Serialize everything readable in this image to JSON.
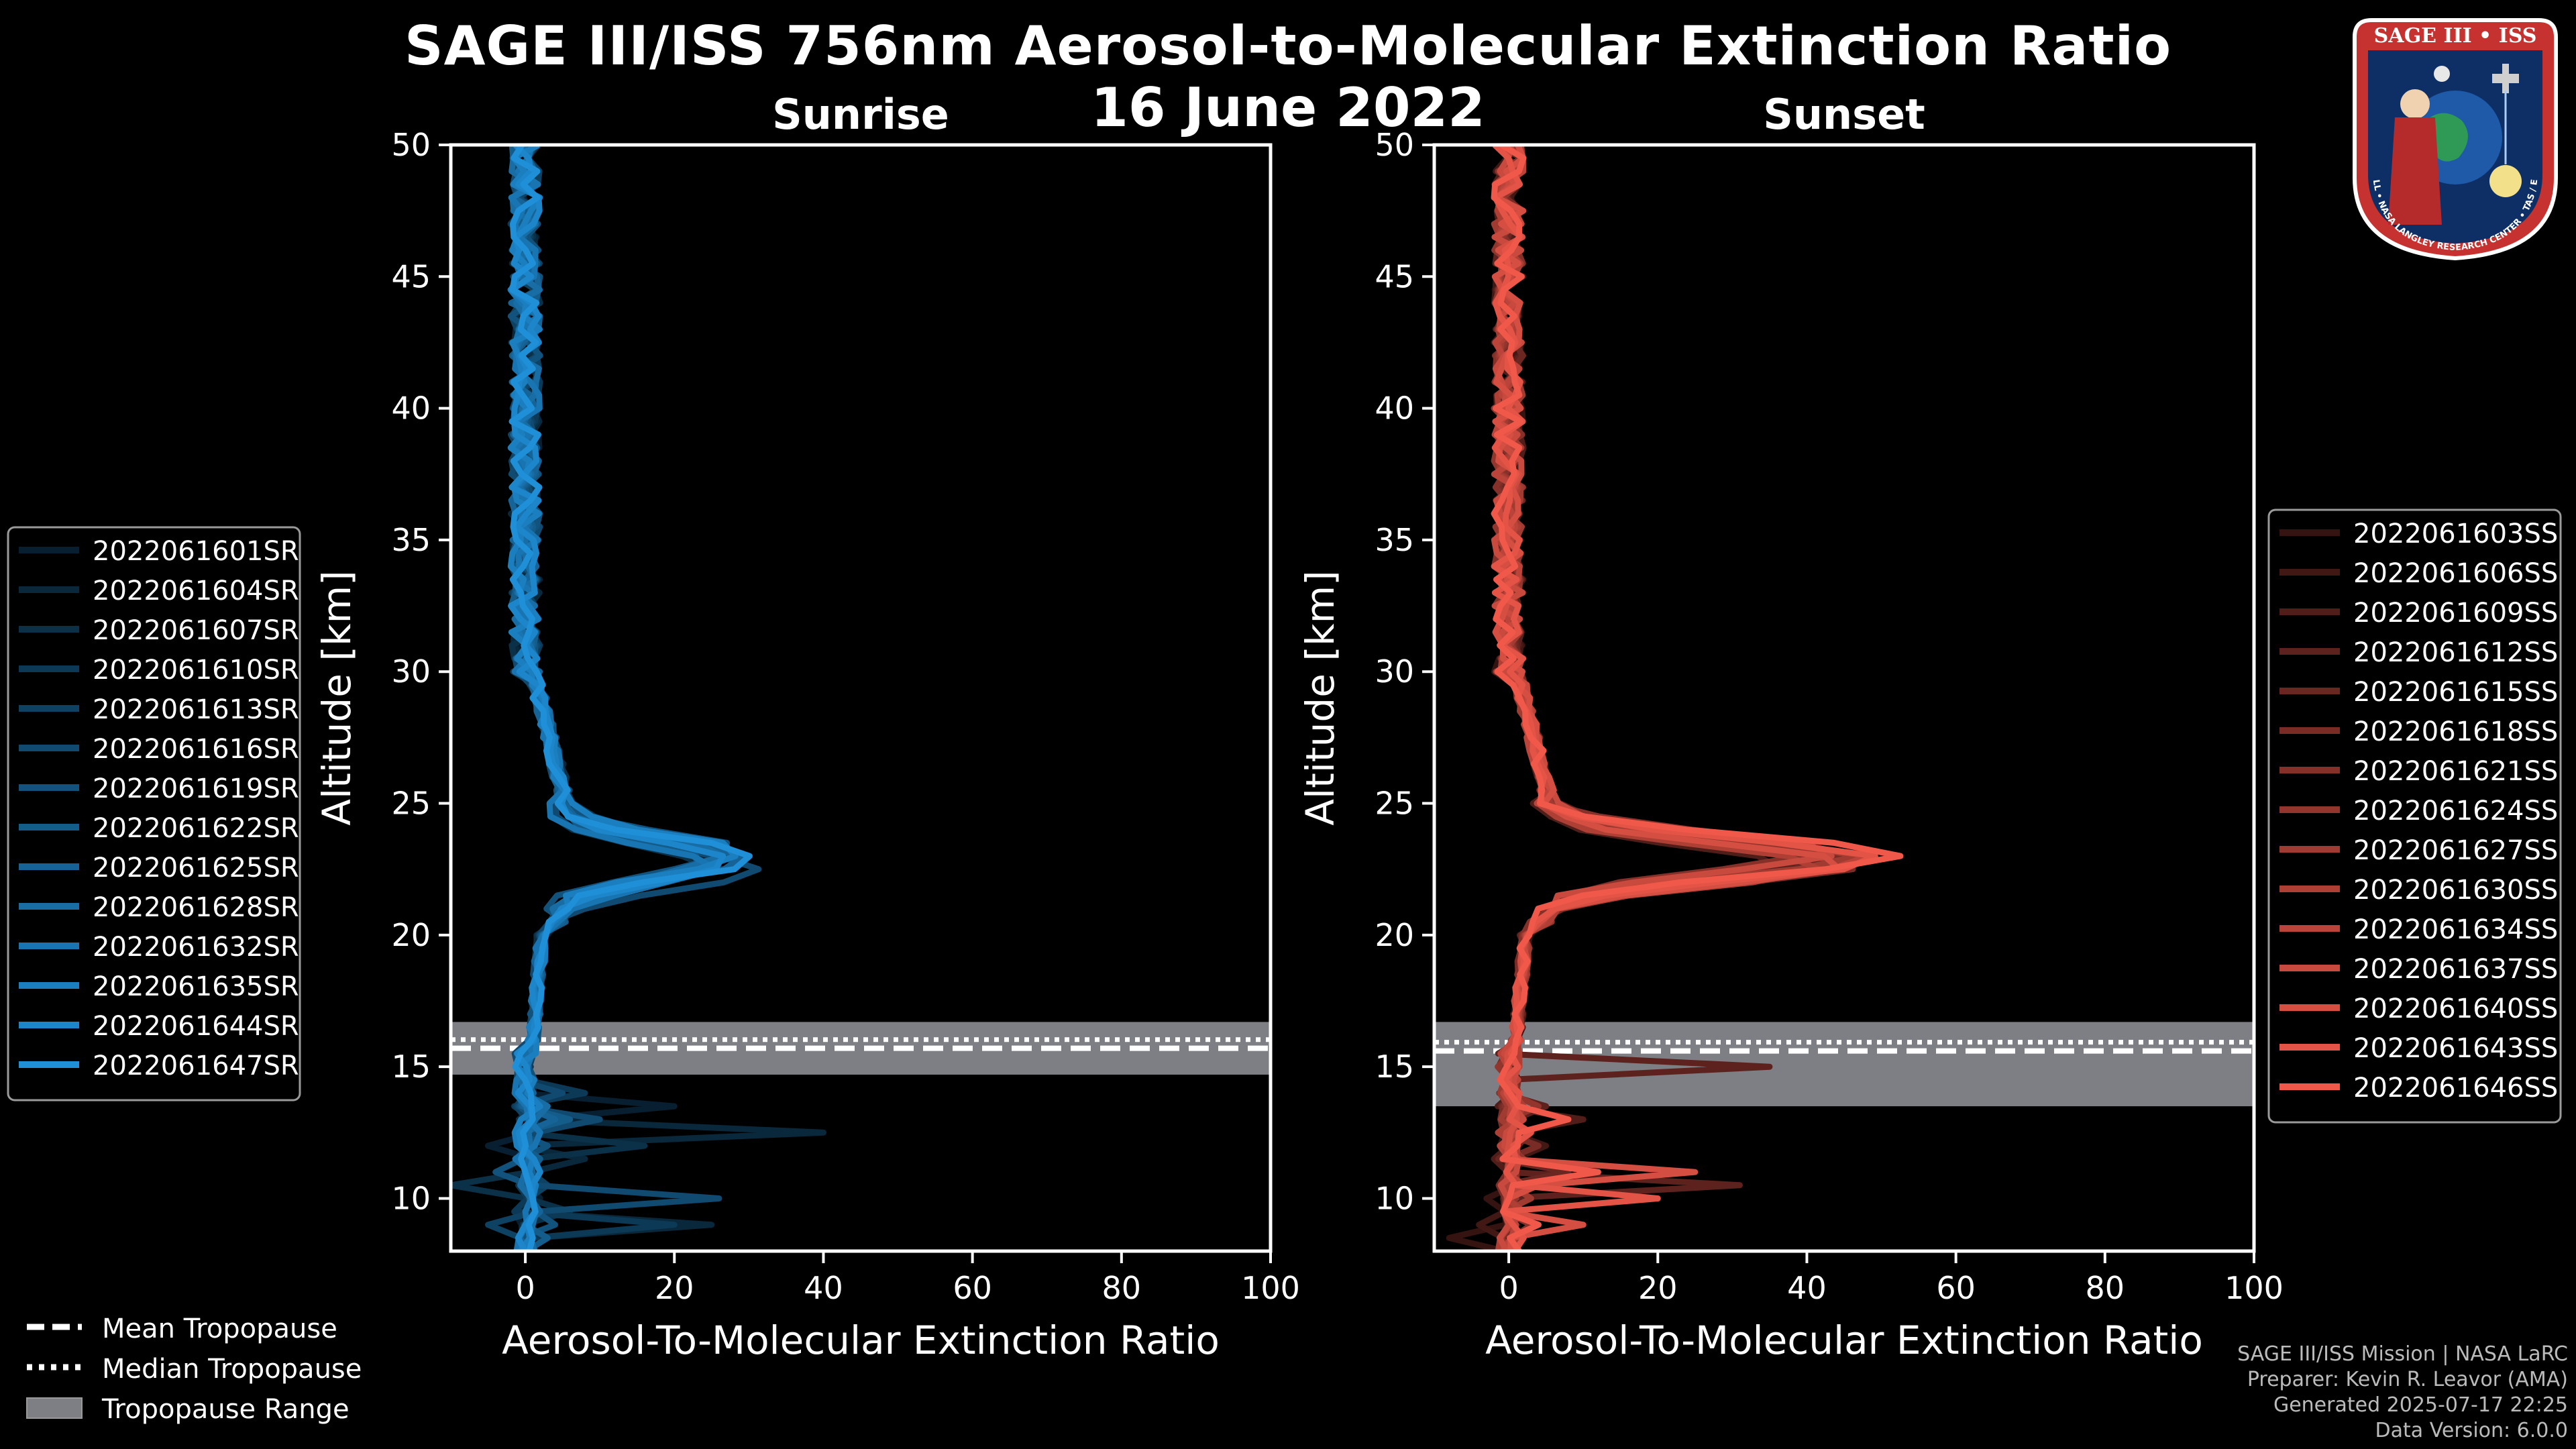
{
  "title": "SAGE III/ISS 756nm Aerosol-to-Molecular Extinction Ratio",
  "date": "16 June 2022",
  "logo": {
    "text": "SAGE III • ISS",
    "ring": "BALL • NASA LANGLEY RESEARCH CENTER • TAS / ESA"
  },
  "credits": {
    "line1": "SAGE III/ISS Mission | NASA LaRC",
    "line2": "Preparer: Kevin R. Leavor (AMA)",
    "line3": "Generated 2025-07-17 22:25",
    "line4": "Data Version: 6.0.0"
  },
  "colors": {
    "sunrise": "#1f8fd8",
    "sunset": "#f0584a",
    "band": "#7d7f84",
    "axis": "#ffffff"
  },
  "chart_data": [
    {
      "type": "line",
      "title": "Sunrise",
      "xlabel": "Aerosol-To-Molecular Extinction Ratio",
      "ylabel": "Altitude [km]",
      "xlim": [
        -10,
        100
      ],
      "ylim": [
        8,
        50
      ],
      "xticks": [
        0,
        20,
        40,
        60,
        80,
        100
      ],
      "yticks": [
        10,
        15,
        20,
        25,
        30,
        35,
        40,
        45,
        50
      ],
      "tropopause": {
        "mean": 15.7,
        "median": 15.8,
        "range": [
          14.7,
          16.7
        ]
      },
      "legend_position": "left",
      "series": [
        {
          "name": "2022061601SR",
          "peak": 25,
          "peak_alt": 22.9,
          "lower": [
            [
              13.5,
              20
            ],
            [
              12.0,
              -5
            ],
            [
              10.0,
              2
            ]
          ]
        },
        {
          "name": "2022061604SR",
          "peak": 27,
          "peak_alt": 23.0,
          "lower": [
            [
              12.5,
              40
            ],
            [
              11.5,
              8
            ],
            [
              9.0,
              25
            ]
          ]
        },
        {
          "name": "2022061607SR",
          "peak": 24,
          "peak_alt": 22.6,
          "lower": [
            [
              11.8,
              16
            ],
            [
              10.5,
              -10
            ],
            [
              9.5,
              6
            ]
          ]
        },
        {
          "name": "2022061610SR",
          "peak": 29,
          "peak_alt": 23.1,
          "lower": [
            [
              13.8,
              8
            ],
            [
              12.6,
              2
            ],
            [
              8.8,
              20
            ]
          ]
        },
        {
          "name": "2022061613SR",
          "peak": 26,
          "peak_alt": 22.8,
          "lower": [
            [
              10.7,
              -10
            ],
            [
              10.3,
              3
            ],
            [
              9.0,
              -5
            ]
          ]
        },
        {
          "name": "2022061616SR",
          "peak": 32,
          "peak_alt": 22.5,
          "lower": [
            [
              14.2,
              5
            ],
            [
              13.0,
              10
            ],
            [
              10.2,
              26
            ]
          ]
        },
        {
          "name": "2022061619SR",
          "peak": 28,
          "peak_alt": 23.2,
          "lower": [
            [
              12.2,
              3
            ],
            [
              11.0,
              -4
            ],
            [
              9.2,
              4
            ]
          ]
        },
        {
          "name": "2022061622SR",
          "peak": 25,
          "peak_alt": 22.7,
          "lower": [
            [
              13.0,
              6
            ],
            [
              11.4,
              2
            ],
            [
              8.6,
              3
            ]
          ]
        },
        {
          "name": "2022061625SR",
          "peak": 30,
          "peak_alt": 22.9,
          "lower": [
            [
              12.8,
              4
            ],
            [
              10.8,
              1
            ],
            [
              9.6,
              2
            ]
          ]
        },
        {
          "name": "2022061628SR",
          "peak": 27,
          "peak_alt": 23.0,
          "lower": [
            [
              13.3,
              3
            ],
            [
              11.2,
              0
            ],
            [
              8.9,
              1
            ]
          ]
        },
        {
          "name": "2022061632SR",
          "peak": 26,
          "peak_alt": 22.6,
          "lower": [
            [
              12.4,
              2
            ],
            [
              10.6,
              1
            ],
            [
              9.3,
              0
            ]
          ]
        },
        {
          "name": "2022061635SR",
          "peak": 29,
          "peak_alt": 23.1,
          "lower": [
            [
              13.6,
              2
            ],
            [
              11.7,
              1
            ],
            [
              9.8,
              1
            ]
          ]
        },
        {
          "name": "2022061644SR",
          "peak": 28,
          "peak_alt": 22.8,
          "lower": [
            [
              12.9,
              1
            ],
            [
              11.1,
              2
            ],
            [
              9.1,
              0
            ]
          ]
        },
        {
          "name": "2022061647SR",
          "peak": 31,
          "peak_alt": 22.9,
          "lower": [
            [
              13.1,
              1
            ],
            [
              10.9,
              0
            ],
            [
              8.7,
              1
            ]
          ]
        }
      ]
    },
    {
      "type": "line",
      "title": "Sunset",
      "xlabel": "Aerosol-To-Molecular Extinction Ratio",
      "ylabel": "Altitude [km]",
      "xlim": [
        -10,
        100
      ],
      "ylim": [
        8,
        50
      ],
      "xticks": [
        0,
        20,
        40,
        60,
        80,
        100
      ],
      "yticks": [
        10,
        15,
        20,
        25,
        30,
        35,
        40,
        45,
        50
      ],
      "tropopause": {
        "mean": 15.6,
        "median": 15.7,
        "range": [
          13.5,
          16.7
        ]
      },
      "legend_position": "right",
      "series": [
        {
          "name": "2022061603SS",
          "peak": 40,
          "peak_alt": 22.8,
          "lower": [
            [
              13.0,
              2
            ],
            [
              10.0,
              -3
            ],
            [
              8.4,
              -8
            ]
          ]
        },
        {
          "name": "2022061606SS",
          "peak": 44,
          "peak_alt": 23.0,
          "lower": [
            [
              12.0,
              5
            ],
            [
              10.5,
              2
            ],
            [
              9.0,
              -4
            ]
          ]
        },
        {
          "name": "2022061609SS",
          "peak": 38,
          "peak_alt": 22.6,
          "lower": [
            [
              13.2,
              10
            ],
            [
              11.5,
              -2
            ],
            [
              9.5,
              0
            ]
          ]
        },
        {
          "name": "2022061612SS",
          "peak": 46,
          "peak_alt": 23.1,
          "lower": [
            [
              14.8,
              35
            ],
            [
              13.5,
              5
            ],
            [
              10.5,
              31
            ]
          ]
        },
        {
          "name": "2022061615SS",
          "peak": 42,
          "peak_alt": 22.9,
          "lower": [
            [
              12.5,
              3
            ],
            [
              11.0,
              8
            ],
            [
              9.5,
              2
            ]
          ]
        },
        {
          "name": "2022061618SS",
          "peak": 48,
          "peak_alt": 22.7,
          "lower": [
            [
              13.8,
              1
            ],
            [
              11.8,
              4
            ],
            [
              9.2,
              1
            ]
          ]
        },
        {
          "name": "2022061621SS",
          "peak": 41,
          "peak_alt": 23.2,
          "lower": [
            [
              12.8,
              2
            ],
            [
              10.8,
              1
            ],
            [
              8.8,
              3
            ]
          ]
        },
        {
          "name": "2022061624SS",
          "peak": 45,
          "peak_alt": 22.8,
          "lower": [
            [
              13.4,
              4
            ],
            [
              11.4,
              2
            ],
            [
              9.8,
              1
            ]
          ]
        },
        {
          "name": "2022061627SS",
          "peak": 47,
          "peak_alt": 23.0,
          "lower": [
            [
              12.2,
              1
            ],
            [
              10.2,
              3
            ],
            [
              8.6,
              1
            ]
          ]
        },
        {
          "name": "2022061630SS",
          "peak": 43,
          "peak_alt": 22.6,
          "lower": [
            [
              13.6,
              2
            ],
            [
              11.6,
              1
            ],
            [
              9.4,
              2
            ]
          ]
        },
        {
          "name": "2022061634SS",
          "peak": 49,
          "peak_alt": 22.9,
          "lower": [
            [
              12.6,
              1
            ],
            [
              10.6,
              2
            ],
            [
              9.0,
              1
            ]
          ]
        },
        {
          "name": "2022061637SS",
          "peak": 44,
          "peak_alt": 23.1,
          "lower": [
            [
              13.1,
              2
            ],
            [
              11.1,
              1
            ],
            [
              8.9,
              0
            ]
          ]
        },
        {
          "name": "2022061640SS",
          "peak": 46,
          "peak_alt": 22.7,
          "lower": [
            [
              11.2,
              25
            ],
            [
              10.4,
              4
            ],
            [
              9.0,
              10
            ]
          ]
        },
        {
          "name": "2022061643SS",
          "peak": 50,
          "peak_alt": 22.9,
          "lower": [
            [
              12.4,
              3
            ],
            [
              9.8,
              20
            ],
            [
              8.7,
              2
            ]
          ]
        },
        {
          "name": "2022061646SS",
          "peak": 53,
          "peak_alt": 23.0,
          "lower": [
            [
              12.9,
              8
            ],
            [
              10.9,
              12
            ],
            [
              9.2,
              4
            ]
          ]
        }
      ]
    }
  ],
  "tropopause_legend": {
    "mean": "Mean Tropopause",
    "median": "Median Tropopause",
    "range": "Tropopause Range"
  }
}
